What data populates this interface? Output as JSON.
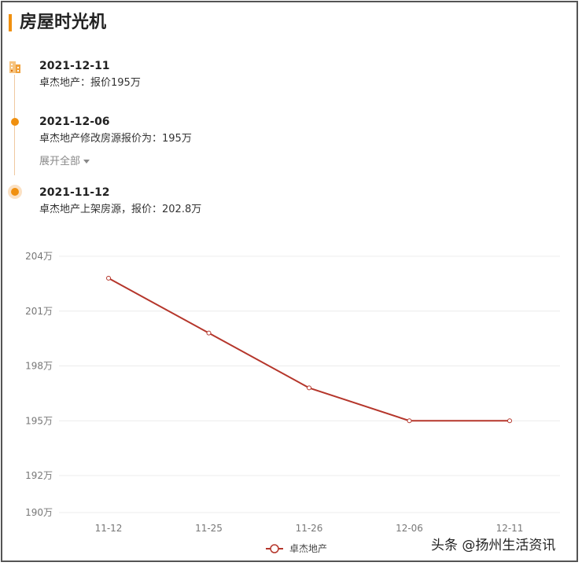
{
  "header": {
    "title": "房屋时光机"
  },
  "timeline": [
    {
      "date": "2021-12-11",
      "text": "卓杰地产：报价195万"
    },
    {
      "date": "2021-12-06",
      "text": "卓杰地产修改房源报价为：195万"
    },
    {
      "date": "2021-11-12",
      "text": "卓杰地产上架房源，报价：202.8万"
    }
  ],
  "expand_label": "展开全部",
  "chart_data": {
    "type": "line",
    "categories": [
      "11-12",
      "11-25",
      "11-26",
      "12-06",
      "12-11"
    ],
    "series": [
      {
        "name": "卓杰地产",
        "values": [
          202.8,
          199.8,
          196.8,
          195,
          195
        ]
      }
    ],
    "y_ticks": [
      {
        "value": 204,
        "label": "204万"
      },
      {
        "value": 201,
        "label": "201万"
      },
      {
        "value": 198,
        "label": "198万"
      },
      {
        "value": 195,
        "label": "195万"
      },
      {
        "value": 192,
        "label": "192万"
      },
      {
        "value": 190,
        "label": "190万"
      }
    ],
    "ylim": [
      190,
      204
    ],
    "grid": true,
    "legend": "bottom-center",
    "colors": {
      "line": "#b5362b",
      "grid": "#ececec",
      "axis_text": "#777",
      "accent": "#f0900f"
    }
  },
  "watermark": "头条 @扬州生活资讯"
}
